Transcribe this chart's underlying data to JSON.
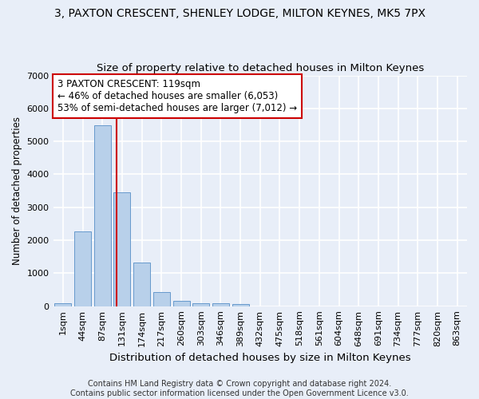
{
  "title": "3, PAXTON CRESCENT, SHENLEY LODGE, MILTON KEYNES, MK5 7PX",
  "subtitle": "Size of property relative to detached houses in Milton Keynes",
  "xlabel": "Distribution of detached houses by size in Milton Keynes",
  "ylabel": "Number of detached properties",
  "categories": [
    "1sqm",
    "44sqm",
    "87sqm",
    "131sqm",
    "174sqm",
    "217sqm",
    "260sqm",
    "303sqm",
    "346sqm",
    "389sqm",
    "432sqm",
    "475sqm",
    "518sqm",
    "561sqm",
    "604sqm",
    "648sqm",
    "691sqm",
    "734sqm",
    "777sqm",
    "820sqm",
    "863sqm"
  ],
  "values": [
    80,
    2280,
    5480,
    3450,
    1320,
    430,
    165,
    100,
    80,
    60,
    0,
    0,
    0,
    0,
    0,
    0,
    0,
    0,
    0,
    0,
    0
  ],
  "bar_color": "#b8d0ea",
  "bar_edge_color": "#6699cc",
  "vline_color": "#cc0000",
  "annotation_text": "3 PAXTON CRESCENT: 119sqm\n← 46% of detached houses are smaller (6,053)\n53% of semi-detached houses are larger (7,012) →",
  "annotation_box_color": "#ffffff",
  "annotation_box_edge_color": "#cc0000",
  "ylim": [
    0,
    7000
  ],
  "yticks": [
    0,
    1000,
    2000,
    3000,
    4000,
    5000,
    6000,
    7000
  ],
  "bg_color": "#e8eef8",
  "grid_color": "#ffffff",
  "footer_line1": "Contains HM Land Registry data © Crown copyright and database right 2024.",
  "footer_line2": "Contains public sector information licensed under the Open Government Licence v3.0.",
  "title_fontsize": 10,
  "subtitle_fontsize": 9.5,
  "xlabel_fontsize": 9.5,
  "ylabel_fontsize": 8.5,
  "tick_fontsize": 8,
  "annotation_fontsize": 8.5,
  "footer_fontsize": 7
}
